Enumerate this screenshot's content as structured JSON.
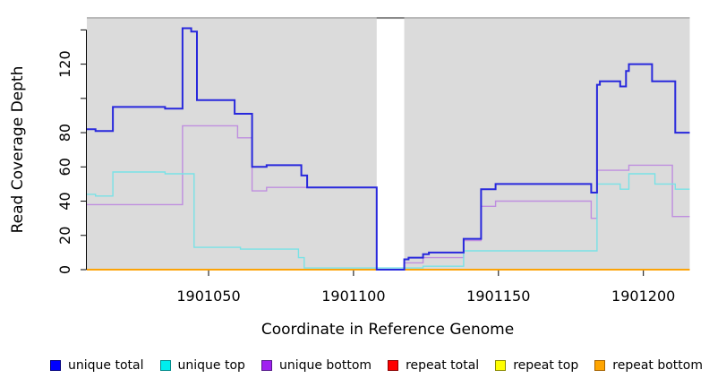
{
  "axes": {
    "x_title": "Coordinate in Reference Genome",
    "y_title": "Read Coverage Depth"
  },
  "chart_data": {
    "type": "line",
    "subtype": "step",
    "title": "",
    "xlabel": "Coordinate in Reference Genome",
    "ylabel": "Read Coverage Depth",
    "xlim": [
      1901008,
      1901216
    ],
    "ylim": [
      0,
      147
    ],
    "x_ticks": [
      1901050,
      1901100,
      1901150,
      1901200
    ],
    "y_ticks": [
      0,
      20,
      40,
      60,
      80,
      100,
      120,
      140
    ],
    "y_tick_labels": [
      "0",
      "20",
      "40",
      "60",
      "80",
      "",
      "120",
      ""
    ],
    "grid": false,
    "plot_bg": "#dbdbdb",
    "masked_region": {
      "x_start": 1901108,
      "x_end": 1901117.5
    },
    "legend_position": "bottom",
    "series": [
      {
        "name": "unique total",
        "line_color": "#2828dc",
        "legend_fill": "#0000ff",
        "legend_border": "#000080",
        "line_width": 2,
        "steps": [
          [
            1901008,
            82
          ],
          [
            1901011,
            81
          ],
          [
            1901017,
            95
          ],
          [
            1901035,
            94
          ],
          [
            1901041,
            141
          ],
          [
            1901044,
            139
          ],
          [
            1901046,
            99
          ],
          [
            1901059,
            91
          ],
          [
            1901065,
            60
          ],
          [
            1901070,
            61
          ],
          [
            1901082,
            55
          ],
          [
            1901084,
            48
          ],
          [
            1901108,
            0
          ],
          [
            1901117.5,
            6
          ],
          [
            1901119,
            7
          ],
          [
            1901124,
            9
          ],
          [
            1901126,
            10
          ],
          [
            1901138,
            18
          ],
          [
            1901144,
            47
          ],
          [
            1901149,
            50
          ],
          [
            1901182,
            45
          ],
          [
            1901184,
            108
          ],
          [
            1901185,
            110
          ],
          [
            1901192,
            107
          ],
          [
            1901194,
            116
          ],
          [
            1901195,
            120
          ],
          [
            1901203,
            110
          ],
          [
            1901211,
            80
          ],
          [
            1901216,
            80
          ]
        ]
      },
      {
        "name": "unique top",
        "line_color": "#79e2e6",
        "legend_fill": "#00eeee",
        "legend_border": "#008b8b",
        "line_width": 1.4,
        "steps": [
          [
            1901008,
            44
          ],
          [
            1901011,
            43
          ],
          [
            1901017,
            57
          ],
          [
            1901035,
            56
          ],
          [
            1901045,
            13
          ],
          [
            1901061,
            12
          ],
          [
            1901081,
            7
          ],
          [
            1901083,
            1
          ],
          [
            1901124,
            2
          ],
          [
            1901138,
            11
          ],
          [
            1901184,
            50
          ],
          [
            1901192,
            47
          ],
          [
            1901195,
            56
          ],
          [
            1901204,
            50
          ],
          [
            1901211,
            47
          ],
          [
            1901216,
            47
          ]
        ]
      },
      {
        "name": "unique bottom",
        "line_color": "#bf8edf",
        "legend_fill": "#a020f0",
        "legend_border": "#551a8b",
        "line_width": 1.4,
        "steps": [
          [
            1901008,
            38
          ],
          [
            1901041,
            84
          ],
          [
            1901060,
            77
          ],
          [
            1901065,
            46
          ],
          [
            1901070,
            48
          ],
          [
            1901108,
            0
          ],
          [
            1901117.5,
            4
          ],
          [
            1901124,
            7
          ],
          [
            1901138,
            17
          ],
          [
            1901144,
            37
          ],
          [
            1901149,
            40
          ],
          [
            1901182,
            30
          ],
          [
            1901184,
            58
          ],
          [
            1901195,
            61
          ],
          [
            1901210,
            31
          ],
          [
            1901216,
            31
          ]
        ]
      },
      {
        "name": "repeat total",
        "line_color": "#dd0000",
        "legend_fill": "#ff0000",
        "legend_border": "#8b0000",
        "line_width": 1.4,
        "steps": [
          [
            1901008,
            0
          ],
          [
            1901216,
            0
          ]
        ]
      },
      {
        "name": "repeat top",
        "line_color": "#eeee00",
        "legend_fill": "#ffff00",
        "legend_border": "#8b8b00",
        "line_width": 1.4,
        "steps": [
          [
            1901008,
            0
          ],
          [
            1901216,
            0
          ]
        ]
      },
      {
        "name": "repeat bottom",
        "line_color": "#ffa200",
        "legend_fill": "#ffa500",
        "legend_border": "#a66300",
        "line_width": 1.8,
        "steps": [
          [
            1901008,
            0
          ],
          [
            1901216,
            0
          ]
        ]
      }
    ]
  }
}
